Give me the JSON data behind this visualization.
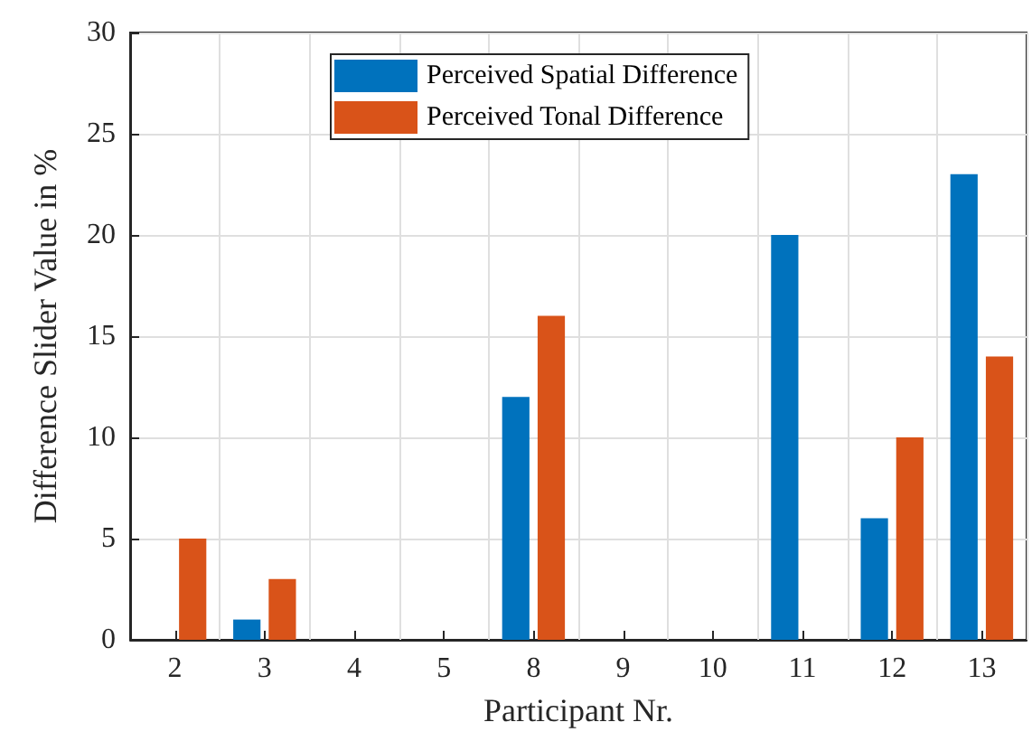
{
  "chart_data": {
    "type": "bar",
    "xlabel": "Participant Nr.",
    "ylabel": "Difference Slider Value in %",
    "categories": [
      "2",
      "3",
      "4",
      "5",
      "8",
      "9",
      "10",
      "11",
      "12",
      "13"
    ],
    "series": [
      {
        "name": "Perceived Spatial Difference",
        "color": "#0072bd",
        "values": [
          0,
          1,
          0,
          0,
          12,
          0,
          0,
          20,
          6,
          23
        ]
      },
      {
        "name": "Perceived Tonal Difference",
        "color": "#d95319",
        "values": [
          5,
          3,
          0,
          0,
          16,
          0,
          0,
          0,
          10,
          14
        ]
      }
    ],
    "ylim": [
      0,
      30
    ],
    "yticks": [
      0,
      5,
      10,
      15,
      20,
      25,
      30
    ],
    "grid": true,
    "legend": "top"
  }
}
